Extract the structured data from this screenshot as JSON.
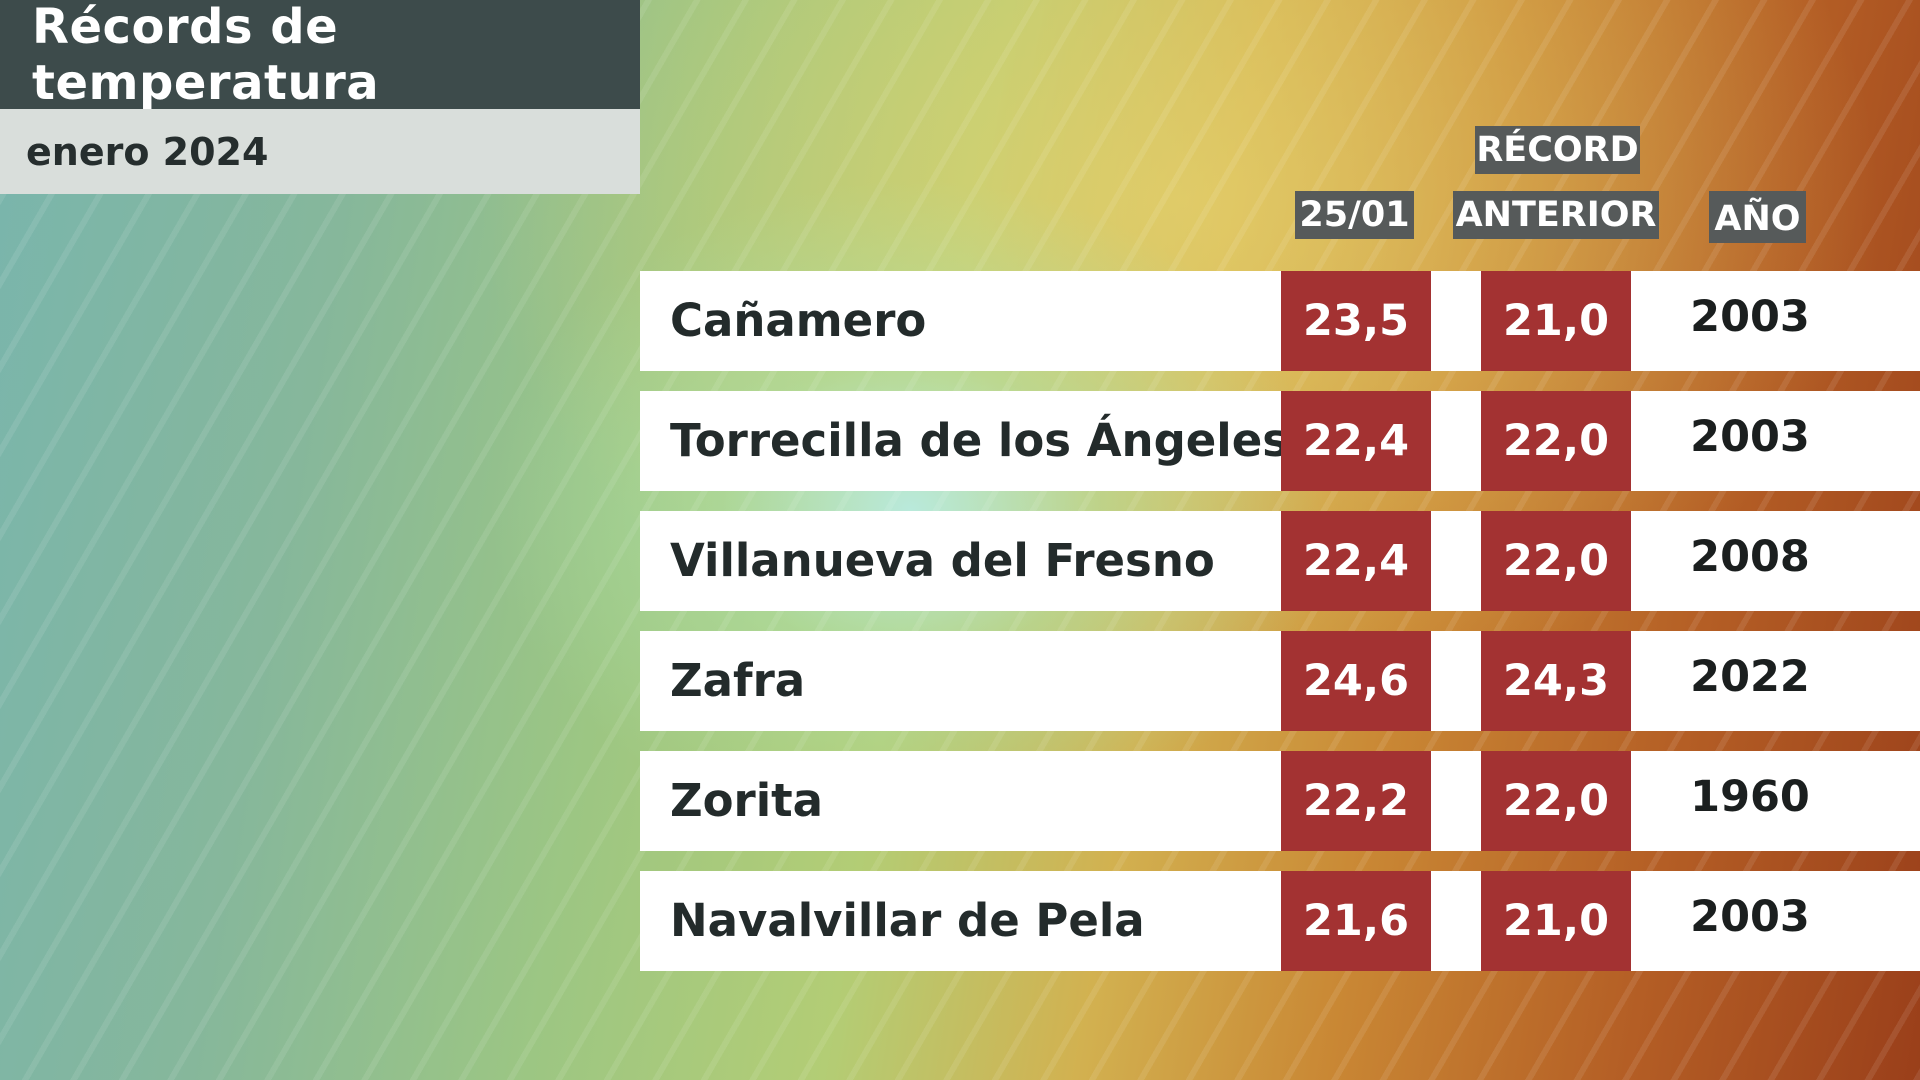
{
  "title": "Récords de temperatura",
  "subtitle": "enero 2024",
  "headers": {
    "date": "25/01",
    "record_line1": "RÉCORD",
    "record_line2": "ANTERIOR",
    "year": "AÑO"
  },
  "rows": [
    {
      "name": "Cañamero",
      "today": "23,5",
      "previous": "21,0",
      "year": "2003"
    },
    {
      "name": "Torrecilla de los Ángeles",
      "today": "22,4",
      "previous": "22,0",
      "year": "2003"
    },
    {
      "name": "Villanueva del Fresno",
      "today": "22,4",
      "previous": "22,0",
      "year": "2008"
    },
    {
      "name": "Zafra",
      "today": "24,6",
      "previous": "24,3",
      "year": "2022"
    },
    {
      "name": "Zorita",
      "today": "22,2",
      "previous": "22,0",
      "year": "1960"
    },
    {
      "name": "Navalvillar de Pela",
      "today": "21,6",
      "previous": "21,0",
      "year": "2003"
    }
  ],
  "colors": {
    "value_cell": "#a33232",
    "title_bg": "#3d4b4b",
    "header_bg": "#565a5a"
  }
}
